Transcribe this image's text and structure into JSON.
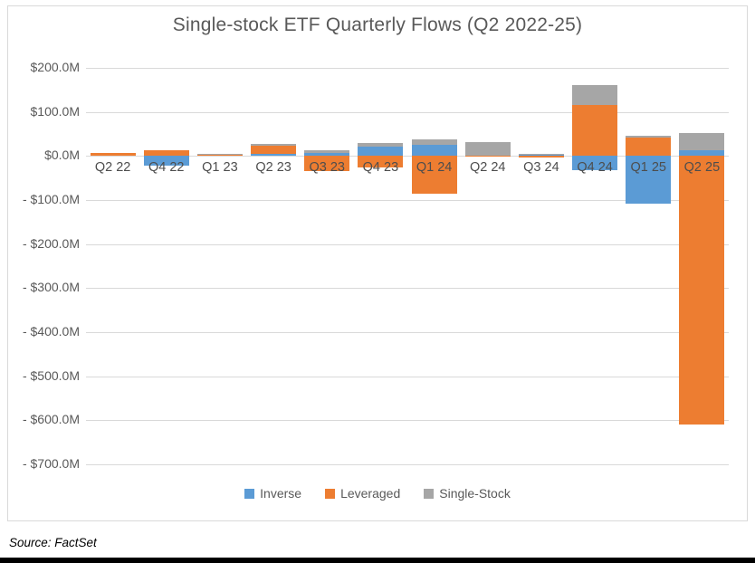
{
  "source_note": "Source: FactSet",
  "chart_data": {
    "type": "bar",
    "stacked": true,
    "title": "Single-stock ETF Quarterly Flows (Q2 2022-25)",
    "xlabel": "",
    "ylabel": "",
    "units": "USD millions",
    "grid": true,
    "legend_position": "bottom",
    "y_axis": {
      "max": 200,
      "min": -700,
      "step": 100,
      "tick_labels": [
        "$200.0M",
        "$100.0M",
        "$0.0M",
        "- $100.0M",
        "- $200.0M",
        "- $300.0M",
        "- $400.0M",
        "- $500.0M",
        "- $600.0M",
        "- $700.0M"
      ]
    },
    "categories": [
      "Q2 22",
      "Q4 22",
      "Q1 23",
      "Q2 23",
      "Q3 23",
      "Q4 23",
      "Q1 24",
      "Q2 24",
      "Q3 24",
      "Q4 24",
      "Q1 25",
      "Q2 25"
    ],
    "series": [
      {
        "name": "Inverse",
        "color": "#5b9bd5",
        "values": [
          0,
          -22,
          0,
          5,
          6,
          22,
          25,
          1,
          3,
          -33,
          -108,
          12
        ]
      },
      {
        "name": "Leveraged",
        "color": "#ed7d31",
        "values": [
          6,
          14,
          2,
          19,
          -34,
          -26,
          -85,
          -2,
          -3,
          115,
          41,
          -610
        ]
      },
      {
        "name": "Single-Stock",
        "color": "#a6a6a6",
        "values": [
          0,
          0,
          3,
          4,
          8,
          8,
          12,
          31,
          2,
          45,
          5,
          41
        ]
      }
    ]
  }
}
